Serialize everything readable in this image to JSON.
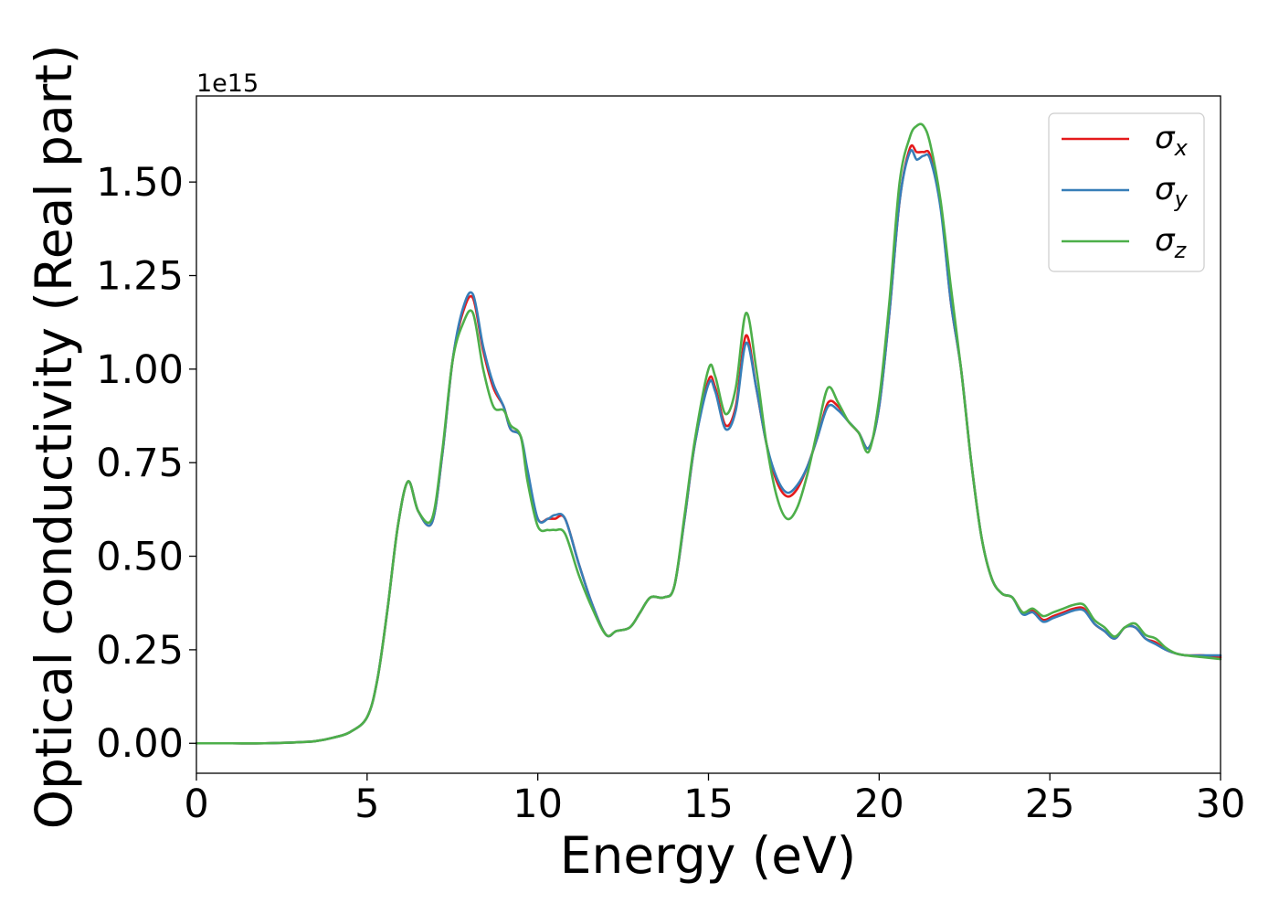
{
  "chart_data": {
    "type": "line",
    "title": "",
    "xlabel": "Energy (eV)",
    "ylabel": "Optical conductivity (Real part)",
    "y_offset_text": "1e15",
    "y_scale": 1000000000000000.0,
    "xlim": [
      0,
      30
    ],
    "ylim": [
      -0.08,
      1.73
    ],
    "x_ticks": [
      0,
      5,
      10,
      15,
      20,
      25,
      30
    ],
    "x_tick_labels": [
      "0",
      "5",
      "10",
      "15",
      "20",
      "25",
      "30"
    ],
    "y_ticks": [
      0.0,
      0.25,
      0.5,
      0.75,
      1.0,
      1.25,
      1.5
    ],
    "y_tick_labels": [
      "0.00",
      "0.25",
      "0.50",
      "0.75",
      "1.00",
      "1.25",
      "1.50"
    ],
    "grid": false,
    "legend_position": "top-right",
    "x": [
      0,
      1,
      2,
      3,
      3.5,
      4,
      4.5,
      5,
      5.3,
      5.6,
      5.9,
      6.2,
      6.5,
      6.9,
      7.2,
      7.5,
      7.8,
      8.1,
      8.4,
      8.7,
      9.0,
      9.2,
      9.5,
      9.7,
      10.0,
      10.3,
      10.5,
      10.8,
      11.2,
      11.6,
      12.0,
      12.3,
      12.7,
      13.0,
      13.3,
      13.7,
      14.0,
      14.3,
      14.6,
      15.0,
      15.2,
      15.5,
      15.8,
      16.1,
      16.4,
      16.7,
      17.0,
      17.3,
      17.6,
      17.9,
      18.2,
      18.5,
      18.8,
      19.1,
      19.4,
      19.7,
      20.0,
      20.3,
      20.6,
      20.9,
      21.1,
      21.3,
      21.5,
      21.8,
      22.1,
      22.4,
      22.7,
      23.0,
      23.3,
      23.6,
      23.9,
      24.2,
      24.5,
      24.8,
      25.1,
      25.4,
      25.7,
      26.0,
      26.3,
      26.6,
      26.9,
      27.2,
      27.5,
      27.8,
      28.1,
      28.4,
      28.7,
      29.0,
      29.5,
      30.0
    ],
    "series": [
      {
        "name": "σ_x",
        "color": "#e41a1c",
        "values": [
          0.0,
          0.0,
          0.0,
          0.003,
          0.006,
          0.015,
          0.03,
          0.07,
          0.17,
          0.36,
          0.58,
          0.7,
          0.62,
          0.59,
          0.77,
          1.02,
          1.15,
          1.19,
          1.05,
          0.95,
          0.9,
          0.84,
          0.82,
          0.72,
          0.6,
          0.6,
          0.6,
          0.6,
          0.48,
          0.37,
          0.29,
          0.3,
          0.31,
          0.35,
          0.39,
          0.39,
          0.42,
          0.6,
          0.8,
          0.97,
          0.95,
          0.85,
          0.9,
          1.09,
          0.95,
          0.8,
          0.7,
          0.66,
          0.68,
          0.74,
          0.82,
          0.91,
          0.9,
          0.86,
          0.83,
          0.79,
          0.9,
          1.15,
          1.45,
          1.59,
          1.58,
          1.58,
          1.57,
          1.44,
          1.18,
          1.0,
          0.75,
          0.55,
          0.44,
          0.4,
          0.39,
          0.35,
          0.355,
          0.33,
          0.34,
          0.35,
          0.36,
          0.36,
          0.32,
          0.3,
          0.28,
          0.31,
          0.31,
          0.28,
          0.27,
          0.25,
          0.24,
          0.235,
          0.235,
          0.23
        ]
      },
      {
        "name": "σ_y",
        "color": "#377eb8",
        "values": [
          0.0,
          0.0,
          0.0,
          0.003,
          0.006,
          0.015,
          0.03,
          0.07,
          0.17,
          0.36,
          0.58,
          0.7,
          0.62,
          0.59,
          0.77,
          1.02,
          1.16,
          1.2,
          1.06,
          0.96,
          0.9,
          0.84,
          0.82,
          0.73,
          0.6,
          0.6,
          0.61,
          0.6,
          0.48,
          0.37,
          0.29,
          0.3,
          0.31,
          0.35,
          0.39,
          0.39,
          0.42,
          0.6,
          0.8,
          0.96,
          0.94,
          0.84,
          0.89,
          1.07,
          0.95,
          0.8,
          0.71,
          0.67,
          0.69,
          0.74,
          0.82,
          0.9,
          0.89,
          0.86,
          0.83,
          0.79,
          0.9,
          1.15,
          1.45,
          1.58,
          1.56,
          1.57,
          1.56,
          1.43,
          1.18,
          1.0,
          0.75,
          0.55,
          0.44,
          0.4,
          0.39,
          0.345,
          0.35,
          0.325,
          0.335,
          0.345,
          0.355,
          0.355,
          0.32,
          0.3,
          0.28,
          0.31,
          0.31,
          0.28,
          0.265,
          0.25,
          0.24,
          0.235,
          0.235,
          0.235
        ]
      },
      {
        "name": "σ_z",
        "color": "#4daf4a",
        "values": [
          0.0,
          0.0,
          0.0,
          0.003,
          0.006,
          0.015,
          0.03,
          0.07,
          0.17,
          0.36,
          0.58,
          0.7,
          0.62,
          0.6,
          0.78,
          1.02,
          1.12,
          1.15,
          1.0,
          0.9,
          0.89,
          0.85,
          0.82,
          0.7,
          0.58,
          0.57,
          0.57,
          0.56,
          0.45,
          0.36,
          0.29,
          0.3,
          0.31,
          0.35,
          0.39,
          0.39,
          0.42,
          0.61,
          0.81,
          1.0,
          0.98,
          0.88,
          0.95,
          1.15,
          1.0,
          0.8,
          0.66,
          0.6,
          0.63,
          0.72,
          0.84,
          0.95,
          0.91,
          0.86,
          0.83,
          0.78,
          0.92,
          1.18,
          1.5,
          1.62,
          1.65,
          1.65,
          1.6,
          1.45,
          1.22,
          1.0,
          0.75,
          0.55,
          0.44,
          0.4,
          0.39,
          0.35,
          0.36,
          0.34,
          0.35,
          0.36,
          0.37,
          0.37,
          0.33,
          0.31,
          0.285,
          0.31,
          0.32,
          0.29,
          0.28,
          0.255,
          0.24,
          0.235,
          0.23,
          0.225
        ]
      }
    ]
  }
}
